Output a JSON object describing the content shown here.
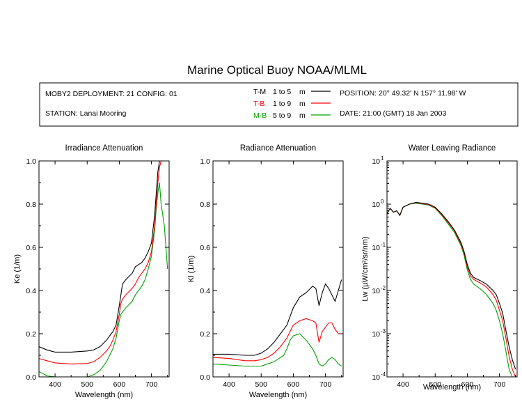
{
  "title": "Marine Optical Buoy NOAA/MLML",
  "info": {
    "deployment": "MOBY2 DEPLOYMENT: 21 CONFIG: 01",
    "station": "STATION: Lanai Mooring",
    "position": "POSITION: 20° 49.32' N   157° 11.98' W",
    "date": "DATE: 21:00 (GMT) 18 Jan 2003",
    "legend": [
      {
        "label": "T-M",
        "range": "1 to 5",
        "unit": "m",
        "color": "#000000"
      },
      {
        "label": "T-B",
        "range": "1 to 9",
        "unit": "m",
        "color": "#ff0000"
      },
      {
        "label": "M-B",
        "range": "5 to 9",
        "unit": "m",
        "color": "#00a000"
      }
    ]
  },
  "chart_data": [
    {
      "type": "line",
      "title": "Irradiance Attenuation",
      "xlabel": "Wavelength (nm)",
      "ylabel": "Ke  (1/m)",
      "xlim": [
        350,
        755
      ],
      "ylim": [
        0,
        1
      ],
      "xticks": [
        "400",
        "500",
        "600",
        "700"
      ],
      "yticks": [
        "0.0",
        "0.2",
        "0.4",
        "0.6",
        "0.8",
        "1.0"
      ],
      "x": [
        350,
        375,
        400,
        450,
        500,
        520,
        540,
        560,
        570,
        580,
        590,
        600,
        605,
        610,
        620,
        640,
        650,
        660,
        670,
        680,
        690,
        700,
        710,
        715,
        720,
        725,
        730,
        740,
        750
      ],
      "series": [
        {
          "name": "T-M",
          "color": "#000000",
          "values": [
            0.14,
            0.125,
            0.115,
            0.115,
            0.12,
            0.125,
            0.14,
            0.17,
            0.19,
            0.21,
            0.24,
            0.33,
            0.38,
            0.43,
            0.45,
            0.48,
            0.51,
            0.52,
            0.53,
            0.55,
            0.58,
            0.62,
            0.75,
            0.85,
            0.95,
            1.0,
            1.0,
            1.0,
            1.0
          ]
        },
        {
          "name": "T-B",
          "color": "#ff0000",
          "values": [
            0.085,
            0.075,
            0.065,
            0.06,
            0.062,
            0.07,
            0.09,
            0.12,
            0.14,
            0.17,
            0.21,
            0.29,
            0.34,
            0.36,
            0.38,
            0.41,
            0.43,
            0.46,
            0.48,
            0.5,
            0.53,
            0.58,
            0.7,
            0.8,
            0.9,
            0.97,
            1.0,
            1.0,
            1.0
          ]
        },
        {
          "name": "M-B",
          "color": "#00a000",
          "values": [
            0.025,
            0.005,
            0.0,
            0.0,
            0.0,
            0.01,
            0.03,
            0.07,
            0.1,
            0.13,
            0.18,
            0.26,
            0.29,
            0.3,
            0.32,
            0.35,
            0.38,
            0.4,
            0.42,
            0.45,
            0.5,
            0.56,
            0.68,
            0.78,
            0.85,
            0.9,
            0.8,
            0.7,
            0.5
          ]
        }
      ]
    },
    {
      "type": "line",
      "title": "Radiance Attenuation",
      "xlabel": "Wavelength (nm)",
      "ylabel": "Kl  (1/m)",
      "xlim": [
        350,
        755
      ],
      "ylim": [
        0,
        1
      ],
      "xticks": [
        "400",
        "500",
        "600",
        "700"
      ],
      "yticks": [
        "0.0",
        "0.2",
        "0.4",
        "0.6",
        "0.8",
        "1.0"
      ],
      "x": [
        350,
        400,
        450,
        480,
        500,
        520,
        540,
        560,
        570,
        580,
        590,
        600,
        620,
        640,
        660,
        670,
        680,
        690,
        700,
        710,
        720,
        730,
        740,
        750
      ],
      "series": [
        {
          "name": "T-M",
          "color": "#000000",
          "values": [
            0.105,
            0.105,
            0.1,
            0.1,
            0.11,
            0.13,
            0.16,
            0.2,
            0.22,
            0.24,
            0.28,
            0.32,
            0.37,
            0.39,
            0.42,
            0.41,
            0.33,
            0.39,
            0.43,
            0.41,
            0.38,
            0.35,
            0.4,
            0.45
          ]
        },
        {
          "name": "T-B",
          "color": "#ff0000",
          "values": [
            0.09,
            0.085,
            0.075,
            0.075,
            0.08,
            0.09,
            0.11,
            0.14,
            0.16,
            0.18,
            0.21,
            0.24,
            0.26,
            0.27,
            0.26,
            0.25,
            0.16,
            0.21,
            0.23,
            0.25,
            0.25,
            0.22,
            0.2,
            0.2
          ]
        },
        {
          "name": "M-B",
          "color": "#00a000",
          "values": [
            0.06,
            0.055,
            0.05,
            0.05,
            0.05,
            0.06,
            0.07,
            0.09,
            0.1,
            0.13,
            0.17,
            0.19,
            0.2,
            0.17,
            0.13,
            0.1,
            0.06,
            0.05,
            0.06,
            0.08,
            0.09,
            0.08,
            0.06,
            0.05
          ]
        }
      ]
    },
    {
      "type": "line",
      "title": "Water Leaving Radiance",
      "xlabel": "Wavelength (nm)",
      "ylabel": "Lw  (µW/cm²/sr/nm)",
      "yscale": "log",
      "xlim": [
        350,
        755
      ],
      "ylim": [
        0.0001,
        10
      ],
      "xticks": [
        "400",
        "500",
        "600",
        "700"
      ],
      "ytick_mantissa": [
        "10",
        "10",
        "10",
        "10",
        "10",
        "10"
      ],
      "ytick_exponents": [
        "-4",
        "-3",
        "-2",
        "-1",
        "0",
        "1"
      ],
      "x": [
        350,
        360,
        370,
        380,
        390,
        400,
        420,
        440,
        460,
        480,
        500,
        520,
        540,
        560,
        580,
        590,
        600,
        610,
        620,
        640,
        660,
        680,
        690,
        700,
        710,
        720,
        730,
        740,
        750
      ],
      "series": [
        {
          "name": "T-M",
          "color": "#000000",
          "values": [
            0.6,
            0.8,
            0.65,
            0.7,
            0.55,
            0.85,
            1.0,
            1.1,
            1.05,
            1.0,
            0.85,
            0.6,
            0.4,
            0.25,
            0.13,
            0.08,
            0.04,
            0.025,
            0.02,
            0.017,
            0.014,
            0.01,
            0.008,
            0.005,
            0.003,
            0.0012,
            0.0005,
            0.00025,
            0.00015
          ]
        },
        {
          "name": "T-B",
          "color": "#ff0000",
          "values": [
            0.6,
            0.8,
            0.65,
            0.7,
            0.55,
            0.85,
            1.0,
            1.08,
            1.03,
            0.97,
            0.82,
            0.58,
            0.38,
            0.24,
            0.12,
            0.075,
            0.035,
            0.022,
            0.018,
            0.015,
            0.012,
            0.008,
            0.006,
            0.0035,
            0.002,
            0.0008,
            0.0003,
            0.00015,
            0.0001
          ]
        },
        {
          "name": "M-B",
          "color": "#00a000",
          "values": [
            0.6,
            0.8,
            0.65,
            0.7,
            0.55,
            0.85,
            1.0,
            1.05,
            1.0,
            0.95,
            0.8,
            0.55,
            0.35,
            0.22,
            0.11,
            0.065,
            0.03,
            0.018,
            0.014,
            0.011,
            0.008,
            0.005,
            0.0035,
            0.002,
            0.001,
            0.0004,
            0.00015,
            0.0001,
            0.0001
          ]
        }
      ]
    }
  ]
}
